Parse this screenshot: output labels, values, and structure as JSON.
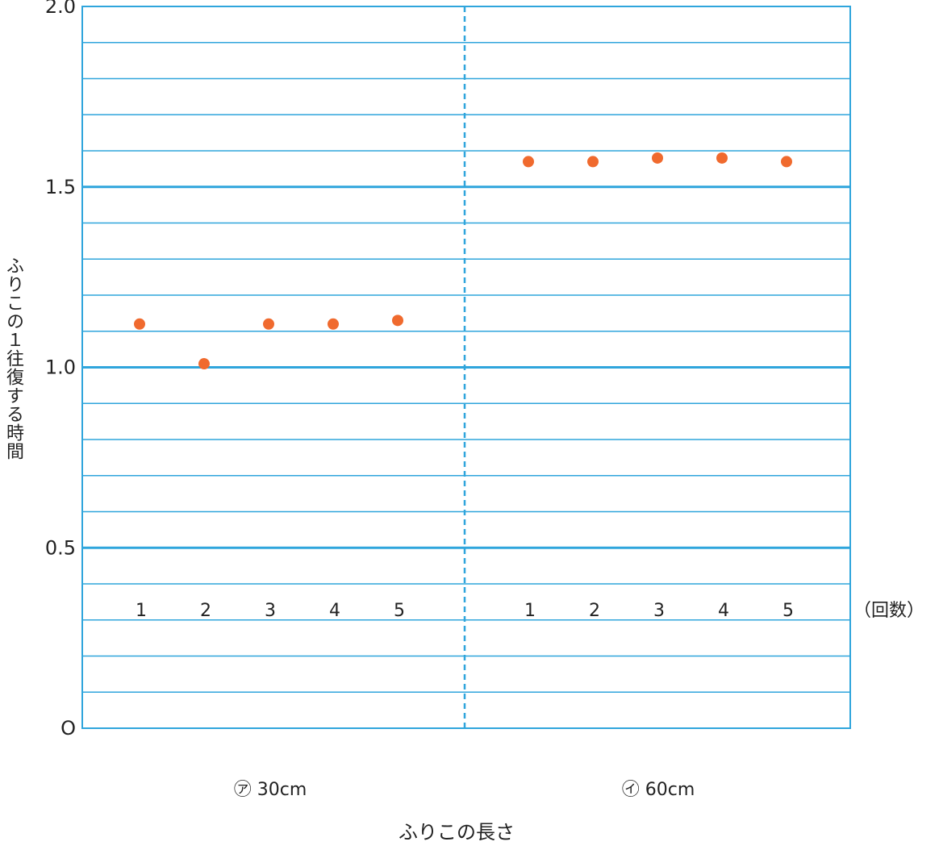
{
  "chart_data": {
    "type": "scatter",
    "ylabel": "ふりこの１往復する時間",
    "xlabel": "ふりこの長さ",
    "count_unit_label": "（回数）",
    "ylim": [
      0,
      2.0
    ],
    "y_ticks": [
      {
        "value": 0,
        "label": "O"
      },
      {
        "value": 0.5,
        "label": "0.5"
      },
      {
        "value": 1.0,
        "label": "1.0"
      },
      {
        "value": 1.5,
        "label": "1.5"
      },
      {
        "value": 2.0,
        "label": "2.0"
      }
    ],
    "minor_grid_step": 0.1,
    "grid": true,
    "groups": [
      {
        "label": "㋐ 30cm",
        "trials": [
          "1",
          "2",
          "3",
          "4",
          "5"
        ],
        "values": [
          1.12,
          1.01,
          1.12,
          1.12,
          1.13
        ]
      },
      {
        "label": "㋑ 60cm",
        "trials": [
          "1",
          "2",
          "3",
          "4",
          "5"
        ],
        "values": [
          1.57,
          1.57,
          1.58,
          1.58,
          1.57
        ]
      }
    ],
    "colors": {
      "grid": "#2fa5dc",
      "point": "#f06a2e",
      "text": "#222222"
    }
  }
}
